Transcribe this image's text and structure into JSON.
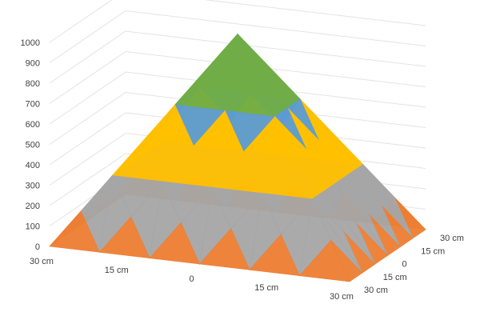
{
  "chart_data": {
    "type": "surface",
    "title": "",
    "z_axis": {
      "ticks": [
        "0",
        "100",
        "200",
        "300",
        "400",
        "500",
        "600",
        "700",
        "800",
        "900",
        "1000"
      ],
      "range": [
        0,
        1000
      ]
    },
    "x_axis": {
      "ticks": [
        "30 cm",
        "15 cm",
        "0",
        "15 cm",
        "30 cm"
      ]
    },
    "y_axis": {
      "ticks": [
        "30 cm",
        "15 cm",
        "0",
        "15 cm",
        "30 cm"
      ]
    },
    "surface": {
      "shape": "pyramid",
      "peak_value": 1000,
      "band_colors": [
        "#ED7D31",
        "#A5A5A5",
        "#FFC000",
        "#5B9BD5",
        "#70AD47",
        "#264478"
      ],
      "band_ranges": [
        [
          0,
          100
        ],
        [
          100,
          300
        ],
        [
          300,
          500
        ],
        [
          500,
          700
        ],
        [
          700,
          900
        ],
        [
          900,
          1000
        ]
      ]
    }
  }
}
